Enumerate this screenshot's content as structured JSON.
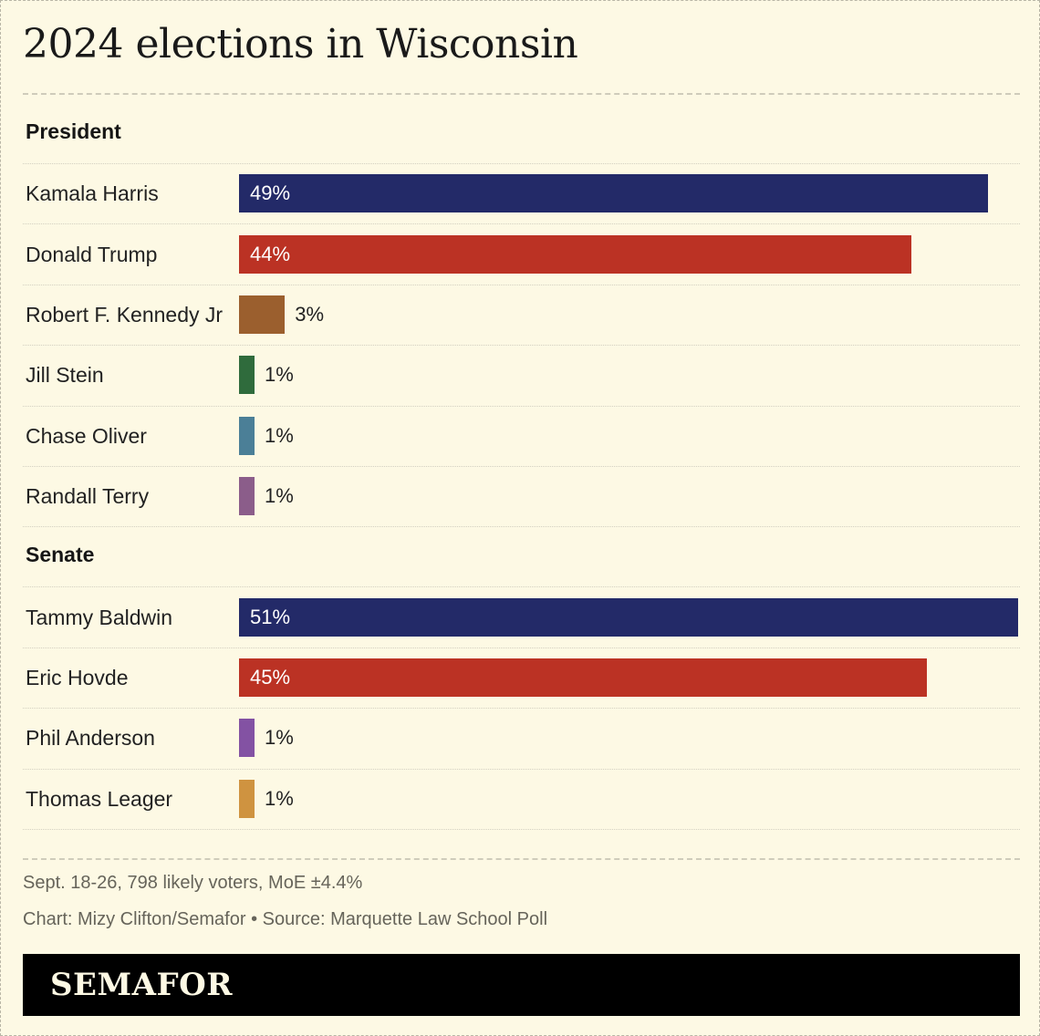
{
  "title": "2024 elections in Wisconsin",
  "notes": {
    "sample": "Sept. 18-26, 798 likely voters, MoE ±4.4%",
    "credit": "Chart: Mizy Clifton/Semafor • Source: Marquette Law School Poll"
  },
  "brand": {
    "logo_text": "SEMAFOR"
  },
  "chart_data": {
    "type": "bar",
    "orientation": "horizontal",
    "xlim": [
      0,
      51
    ],
    "groups": [
      {
        "name": "President",
        "rows": [
          {
            "label": "Kamala Harris",
            "value": 49,
            "value_label": "49%",
            "color": "#232a68"
          },
          {
            "label": "Donald Trump",
            "value": 44,
            "value_label": "44%",
            "color": "#bb3224"
          },
          {
            "label": "Robert F. Kennedy Jr",
            "value": 3,
            "value_label": "3%",
            "color": "#9b5f2e"
          },
          {
            "label": "Jill Stein",
            "value": 1,
            "value_label": "1%",
            "color": "#2f6b3c"
          },
          {
            "label": "Chase Oliver",
            "value": 1,
            "value_label": "1%",
            "color": "#4b7f97"
          },
          {
            "label": "Randall Terry",
            "value": 1,
            "value_label": "1%",
            "color": "#8b5d8a"
          }
        ]
      },
      {
        "name": "Senate",
        "rows": [
          {
            "label": "Tammy Baldwin",
            "value": 51,
            "value_label": "51%",
            "color": "#232a68"
          },
          {
            "label": "Eric Hovde",
            "value": 45,
            "value_label": "45%",
            "color": "#bb3224"
          },
          {
            "label": "Phil Anderson",
            "value": 1,
            "value_label": "1%",
            "color": "#8352a3"
          },
          {
            "label": "Thomas Leager",
            "value": 1,
            "value_label": "1%",
            "color": "#cf9340"
          }
        ]
      }
    ]
  }
}
